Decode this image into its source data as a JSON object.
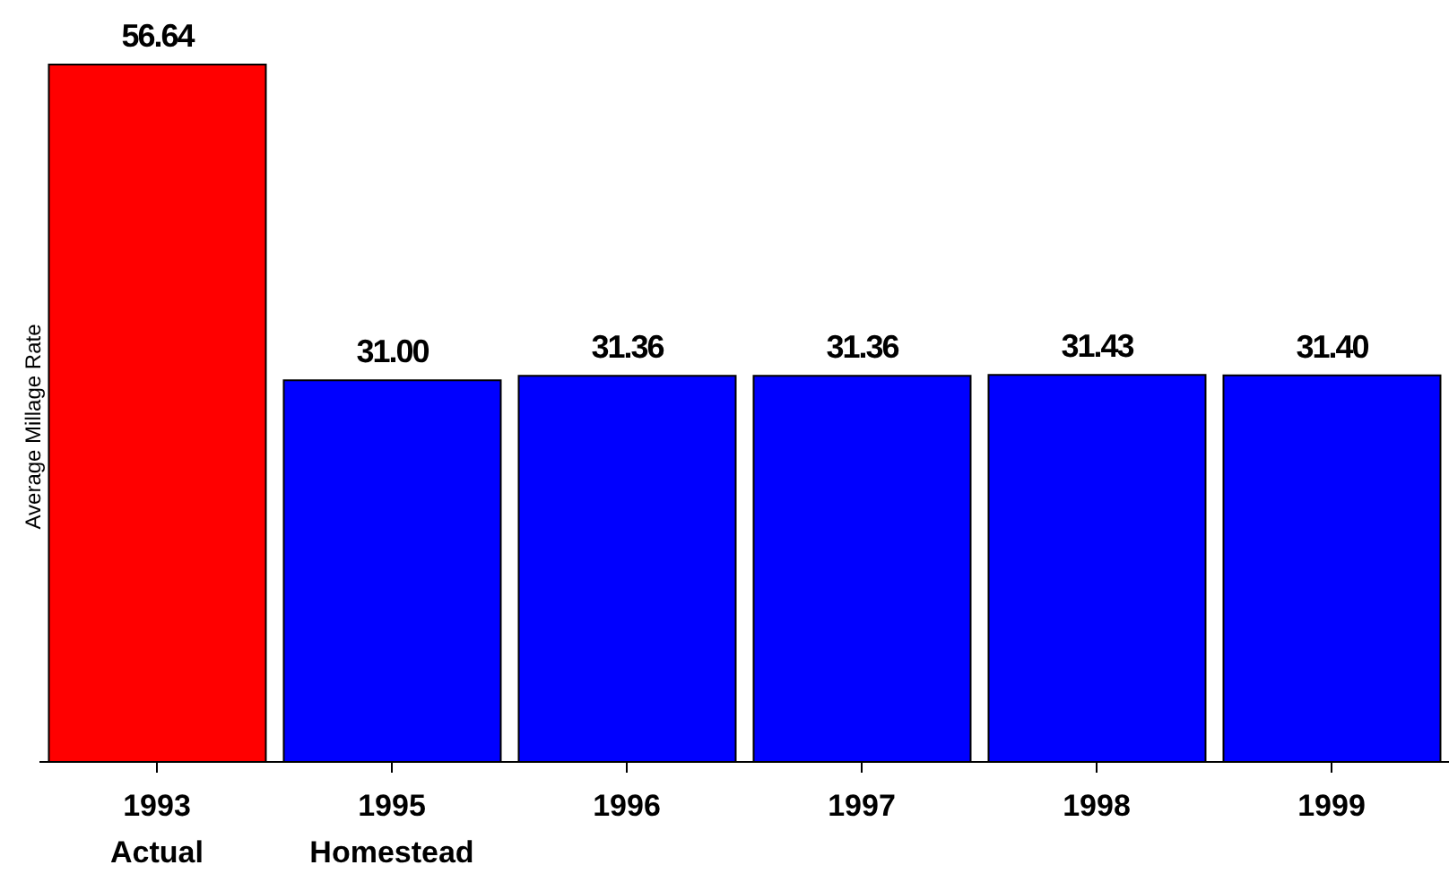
{
  "chart_data": {
    "type": "bar",
    "ylabel": "Average Millage Rate",
    "categories": [
      "1993\nActual",
      "1995\nHomestead",
      "1996",
      "1997",
      "1998",
      "1999"
    ],
    "values": [
      56.64,
      31.0,
      31.36,
      31.36,
      31.43,
      31.4
    ],
    "colors": [
      "#ff0000",
      "#0000ff",
      "#0000ff",
      "#0000ff",
      "#0000ff",
      "#0000ff"
    ],
    "value_labels": [
      "56.64",
      "31.00",
      "31.36",
      "31.36",
      "31.43",
      "31.40"
    ],
    "tick_labels": "x"
  }
}
